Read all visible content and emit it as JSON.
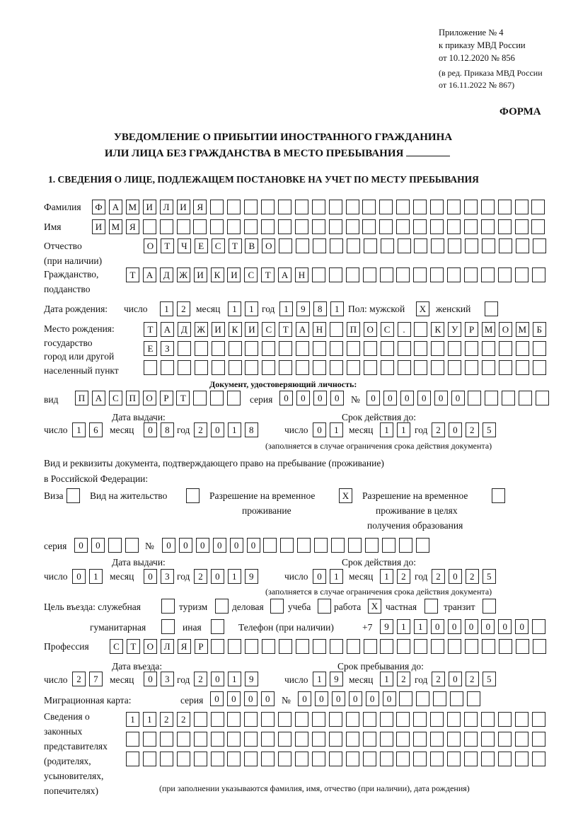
{
  "header": {
    "line1": "Приложение № 4",
    "line2": "к приказу МВД России",
    "line3": "от 10.12.2020 № 856",
    "line4": "(в ред. Приказа МВД России",
    "line5": "от 16.11.2022 № 867)",
    "form_label": "ФОРМА"
  },
  "title": {
    "line1": "УВЕДОМЛЕНИЕ О ПРИБЫТИИ ИНОСТРАННОГО ГРАЖДАНИНА",
    "line2": "ИЛИ ЛИЦА БЕЗ ГРАЖДАНСТВА В МЕСТО ПРЕБЫВАНИЯ"
  },
  "section1": {
    "heading": "1. СВЕДЕНИЯ О ЛИЦЕ, ПОДЛЕЖАЩЕМ ПОСТАНОВКЕ НА УЧЕТ ПО МЕСТУ ПРЕБЫВАНИЯ",
    "labels": {
      "surname": "Фамилия",
      "name": "Имя",
      "patronymic": "Отчество",
      "patronymic_note": "(при наличии)",
      "citizenship": "Гражданство,",
      "citizenship2": "подданство",
      "birth_date": "Дата рождения:",
      "day": "число",
      "month": "месяц",
      "year": "год",
      "sex": "Пол: мужской",
      "female": "женский",
      "birthplace1": "Место рождения:",
      "birthplace2": "государство",
      "birthplace3": "город или другой",
      "birthplace4": "населенный пункт",
      "id_doc_heading": "Документ, удостоверяющий личность:",
      "doc_type": "вид",
      "series": "серия",
      "number": "№",
      "issue_date": "Дата выдачи:",
      "valid_until": "Срок действия до:",
      "validity_note": "(заполняется в случае ограничения срока действия документа)",
      "residence_doc1": "Вид и реквизиты документа, подтверждающего право на пребывание (проживание)",
      "residence_doc2": "в Российской Федерации:",
      "visa": "Виза",
      "residence_permit": "Вид на жительство",
      "temp_residence1": "Разрешение на временное",
      "temp_residence2": "проживание",
      "temp_edu1": "Разрешение на временное",
      "temp_edu2": "проживание в целях",
      "temp_edu3": "получения образования",
      "purpose": "Цель въезда: служебная",
      "tourism": "туризм",
      "business": "деловая",
      "study": "учеба",
      "work": "работа",
      "private": "частная",
      "transit": "транзит",
      "humanitarian": "гуманитарная",
      "other": "иная",
      "phone": "Телефон (при наличии)",
      "phone_prefix": "+7",
      "profession": "Профессия",
      "entry_date": "Дата въезда:",
      "stay_until": "Срок пребывания до:",
      "migration_card": "Миграционная карта:",
      "reps1": "Сведения о",
      "reps2": "законных",
      "reps3": "представителях",
      "reps4": "(родителях,",
      "reps5": "усыновителях,",
      "reps6": "попечителях)",
      "reps_note": "(при заполнении указываются фамилия, имя, отчество (при наличии), дата рождения)"
    },
    "values": {
      "surname": "ФАМИЛИЯ",
      "name": "ИМЯ",
      "patronymic": "ОТЧЕСТВО",
      "citizenship": "ТАДЖИКИСТАН",
      "birth_day": "12",
      "birth_month": "11",
      "birth_year": "1981",
      "sex_male": "X",
      "sex_female": "",
      "birthplace_row1": "ТАДЖИКИСТАН ПОС. КУРМОМБ",
      "birthplace_row2": "ЕЗ",
      "birthplace_row3": "",
      "doc_type": "ПАСПОРТ",
      "doc_series": "0000",
      "doc_number": "000000",
      "doc_issue_day": "16",
      "doc_issue_month": "08",
      "doc_issue_year": "2018",
      "doc_valid_day": "01",
      "doc_valid_month": "11",
      "doc_valid_year": "2025",
      "visa": "",
      "residence_permit": "",
      "temp_residence": "X",
      "temp_edu": "",
      "res_series": "00",
      "res_number": "000000",
      "res_issue_day": "01",
      "res_issue_month": "03",
      "res_issue_year": "2019",
      "res_valid_day": "01",
      "res_valid_month": "12",
      "res_valid_year": "2025",
      "purpose_official": "",
      "purpose_tourism": "",
      "purpose_business": "",
      "purpose_study": "",
      "purpose_work": "X",
      "purpose_private": "",
      "purpose_transit": "",
      "purpose_humanitarian": "",
      "purpose_other": "",
      "phone": "911000000",
      "profession": "СТОЛЯР",
      "entry_day": "27",
      "entry_month": "03",
      "entry_year": "2019",
      "stay_day": "19",
      "stay_month": "12",
      "stay_year": "2025",
      "mig_series": "0000",
      "mig_number": "000000",
      "reps_row1": "1122",
      "reps_row2": "",
      "reps_row3": ""
    }
  }
}
